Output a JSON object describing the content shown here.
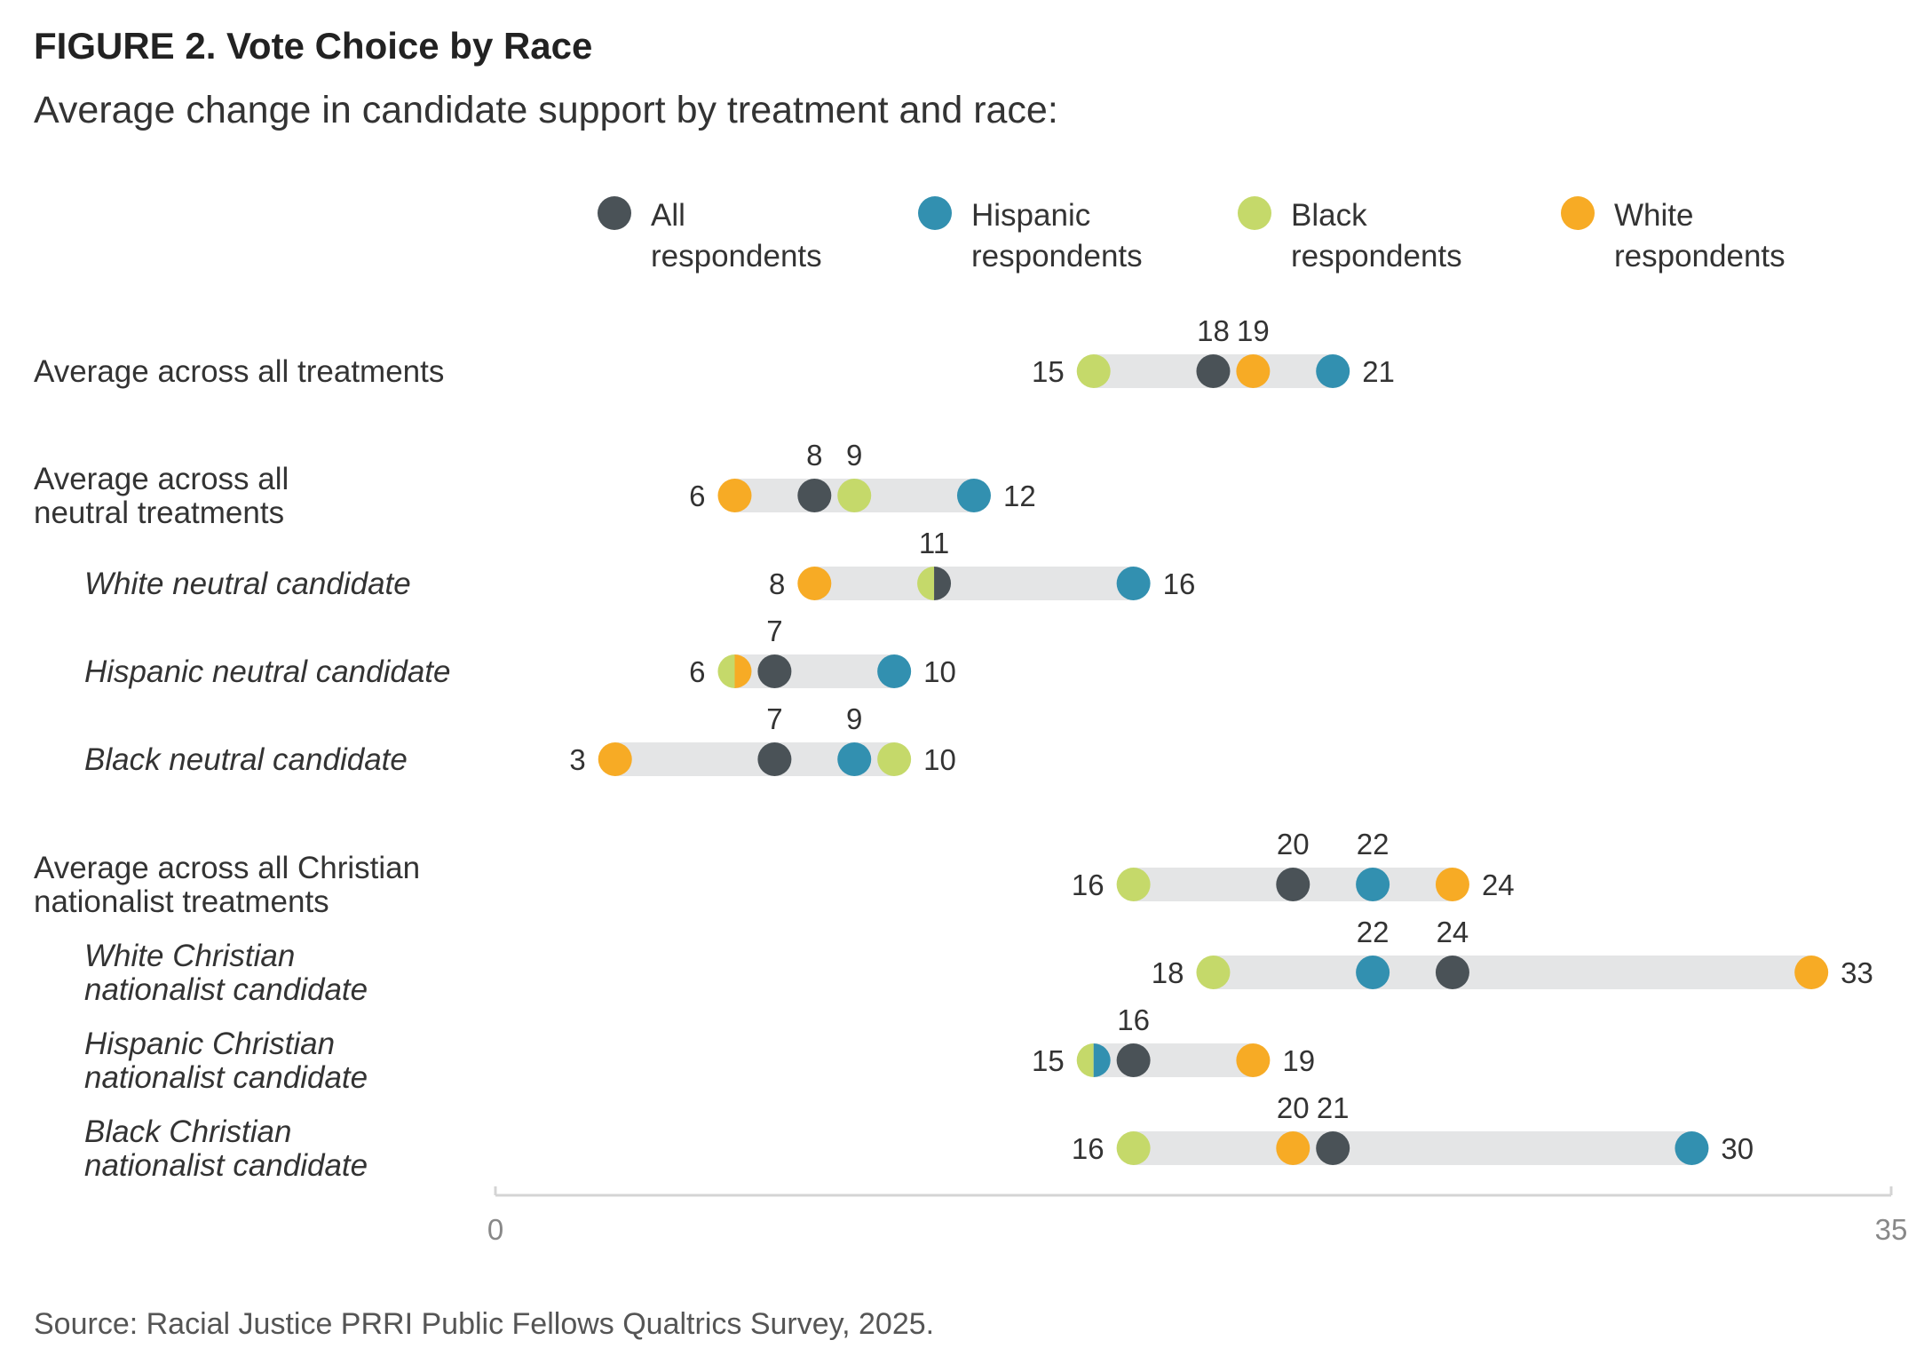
{
  "title": "FIGURE 2. Vote Choice by Race",
  "subtitle": "Average change in candidate support by treatment and race:",
  "source": "Source: Racial Justice PRRI Public Fellows Qualtrics Survey, 2025.",
  "colors": {
    "all": "#4a5257",
    "hispanic": "#3290b0",
    "black": "#c5d96a",
    "white": "#f7ab25",
    "bar": "#e4e5e6",
    "axis": "#d4d4d4"
  },
  "chart_data": {
    "type": "dot",
    "xlim": [
      0,
      35
    ],
    "x_ticks": [
      0,
      35
    ],
    "series": [
      {
        "key": "all",
        "name": "All respondents",
        "label_lines": [
          "All",
          "respondents"
        ]
      },
      {
        "key": "hispanic",
        "name": "Hispanic respondents",
        "label_lines": [
          "Hispanic",
          "respondents"
        ]
      },
      {
        "key": "black",
        "name": "Black respondents",
        "label_lines": [
          "Black",
          "respondents"
        ]
      },
      {
        "key": "white",
        "name": "White respondents",
        "label_lines": [
          "White",
          "respondents"
        ]
      }
    ],
    "rows": [
      {
        "label_lines": [
          "Average across all treatments"
        ],
        "italic": false,
        "values": {
          "all": 18,
          "hispanic": 21,
          "black": 15,
          "white": 19
        },
        "half_dots": []
      },
      {
        "label_lines": [
          "Average across all",
          "neutral treatments"
        ],
        "italic": false,
        "values": {
          "all": 8,
          "hispanic": 12,
          "black": 9,
          "white": 6
        },
        "half_dots": []
      },
      {
        "label_lines": [
          "White neutral candidate"
        ],
        "italic": true,
        "values": {
          "all": 11,
          "hispanic": 16,
          "black": 11,
          "white": 8
        },
        "half_dots": [
          [
            "black",
            "all"
          ]
        ]
      },
      {
        "label_lines": [
          "Hispanic neutral candidate"
        ],
        "italic": true,
        "values": {
          "all": 7,
          "hispanic": 10,
          "black": 6,
          "white": 6
        },
        "half_dots": [
          [
            "black",
            "white"
          ]
        ]
      },
      {
        "label_lines": [
          "Black neutral candidate"
        ],
        "italic": true,
        "values": {
          "all": 7,
          "hispanic": 9,
          "black": 10,
          "white": 3
        },
        "half_dots": []
      },
      {
        "label_lines": [
          "Average across all Christian",
          "nationalist treatments"
        ],
        "italic": false,
        "values": {
          "all": 20,
          "hispanic": 22,
          "black": 16,
          "white": 24
        },
        "half_dots": []
      },
      {
        "label_lines": [
          "White Christian",
          "nationalist candidate"
        ],
        "italic": true,
        "values": {
          "all": 24,
          "hispanic": 22,
          "black": 18,
          "white": 33
        },
        "half_dots": []
      },
      {
        "label_lines": [
          "Hispanic Christian",
          "nationalist candidate"
        ],
        "italic": true,
        "values": {
          "all": 16,
          "hispanic": 15,
          "black": 15,
          "white": 19
        },
        "half_dots": [
          [
            "black",
            "hispanic"
          ]
        ]
      },
      {
        "label_lines": [
          "Black Christian",
          "nationalist candidate"
        ],
        "italic": true,
        "values": {
          "all": 21,
          "hispanic": 30,
          "black": 16,
          "white": 20
        },
        "half_dots": []
      }
    ]
  }
}
